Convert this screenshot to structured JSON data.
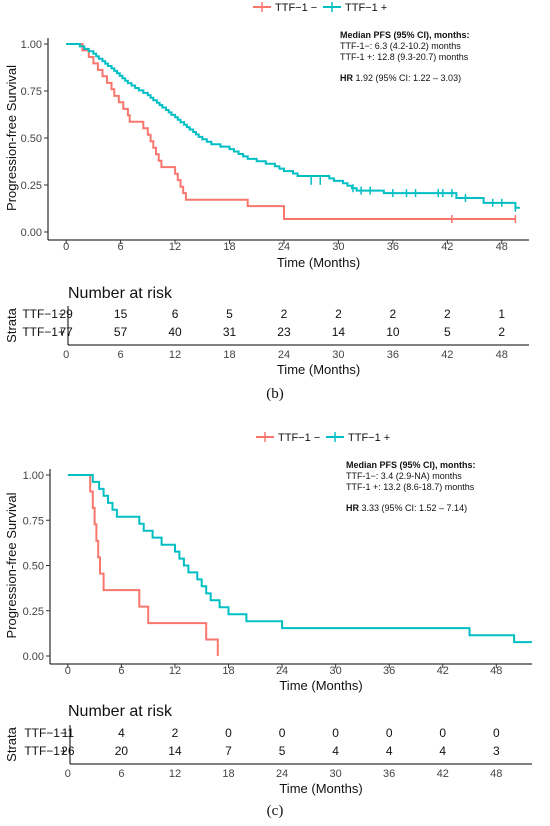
{
  "colors": {
    "neg": "#F8766D",
    "pos": "#00BFC4"
  },
  "chart_data": [
    {
      "type": "line",
      "panel": "(b)",
      "legend": [
        "TTF−1 −",
        "TTF−1 +"
      ],
      "ylabel": "Progression-free Survival",
      "xlabel": "Time (Months)",
      "xticks": [
        "0",
        "6",
        "12",
        "18",
        "24",
        "30",
        "36",
        "42",
        "48"
      ],
      "yticks": [
        "0.00",
        "0.25",
        "0.50",
        "0.75",
        "1.00"
      ],
      "xlim": [
        -2,
        51
      ],
      "ylim": [
        0,
        1
      ],
      "annotation": {
        "title": "Median PFS  (95% CI), months:",
        "line1": "TTF-1−: 6.3 (4.2-10.2) months",
        "line2": "TTF-1 +: 12.8 (9.3-20.7) months",
        "hr_label": "HR",
        "hr_text": " 1.92 (95% CI: 1.22 – 3.03)"
      },
      "series": [
        {
          "name": "TTF−1 −",
          "color": "neg",
          "steps": [
            [
              0,
              1.0
            ],
            [
              1.8,
              0.966
            ],
            [
              2.5,
              0.931
            ],
            [
              3.0,
              0.897
            ],
            [
              3.5,
              0.862
            ],
            [
              4.0,
              0.828
            ],
            [
              4.5,
              0.793
            ],
            [
              5.0,
              0.759
            ],
            [
              5.3,
              0.724
            ],
            [
              5.8,
              0.69
            ],
            [
              6.3,
              0.655
            ],
            [
              6.8,
              0.621
            ],
            [
              7.0,
              0.586
            ],
            [
              8.5,
              0.552
            ],
            [
              9.0,
              0.517
            ],
            [
              9.3,
              0.483
            ],
            [
              9.6,
              0.448
            ],
            [
              9.9,
              0.414
            ],
            [
              10.2,
              0.379
            ],
            [
              10.5,
              0.345
            ],
            [
              12.0,
              0.31
            ],
            [
              12.3,
              0.276
            ],
            [
              12.6,
              0.241
            ],
            [
              12.9,
              0.207
            ],
            [
              13.2,
              0.172
            ],
            [
              20.0,
              0.138
            ],
            [
              24.0,
              0.069
            ],
            [
              49.5,
              0.069
            ]
          ],
          "censor": [
            [
              42.5,
              0.069
            ],
            [
              49.5,
              0.069
            ]
          ]
        },
        {
          "name": "TTF−1 +",
          "color": "pos",
          "steps": [
            [
              0,
              1.0
            ],
            [
              1.5,
              0.987
            ],
            [
              2.0,
              0.974
            ],
            [
              2.5,
              0.961
            ],
            [
              3.0,
              0.948
            ],
            [
              3.3,
              0.935
            ],
            [
              3.6,
              0.922
            ],
            [
              4.0,
              0.909
            ],
            [
              4.3,
              0.896
            ],
            [
              4.6,
              0.883
            ],
            [
              5.0,
              0.87
            ],
            [
              5.3,
              0.857
            ],
            [
              5.6,
              0.844
            ],
            [
              5.9,
              0.831
            ],
            [
              6.2,
              0.818
            ],
            [
              6.5,
              0.805
            ],
            [
              6.8,
              0.792
            ],
            [
              7.2,
              0.779
            ],
            [
              7.6,
              0.766
            ],
            [
              8.0,
              0.753
            ],
            [
              8.5,
              0.74
            ],
            [
              9.0,
              0.727
            ],
            [
              9.3,
              0.714
            ],
            [
              9.6,
              0.701
            ],
            [
              10.0,
              0.688
            ],
            [
              10.3,
              0.675
            ],
            [
              10.6,
              0.662
            ],
            [
              11.0,
              0.649
            ],
            [
              11.3,
              0.636
            ],
            [
              11.6,
              0.623
            ],
            [
              12.0,
              0.61
            ],
            [
              12.3,
              0.597
            ],
            [
              12.6,
              0.584
            ],
            [
              13.0,
              0.571
            ],
            [
              13.3,
              0.558
            ],
            [
              13.6,
              0.545
            ],
            [
              14.0,
              0.532
            ],
            [
              14.3,
              0.519
            ],
            [
              14.6,
              0.506
            ],
            [
              15.0,
              0.493
            ],
            [
              15.5,
              0.48
            ],
            [
              16.0,
              0.467
            ],
            [
              17.0,
              0.454
            ],
            [
              18.0,
              0.441
            ],
            [
              18.5,
              0.428
            ],
            [
              19.0,
              0.415
            ],
            [
              19.5,
              0.402
            ],
            [
              20.0,
              0.389
            ],
            [
              21.0,
              0.376
            ],
            [
              22.0,
              0.363
            ],
            [
              23.0,
              0.35
            ],
            [
              23.5,
              0.337
            ],
            [
              24.0,
              0.324
            ],
            [
              25.0,
              0.311
            ],
            [
              25.5,
              0.298
            ],
            [
              29.0,
              0.285
            ],
            [
              29.5,
              0.272
            ],
            [
              30.5,
              0.259
            ],
            [
              31.0,
              0.246
            ],
            [
              31.5,
              0.233
            ],
            [
              32.0,
              0.22
            ],
            [
              35.0,
              0.207
            ],
            [
              43.0,
              0.181
            ],
            [
              46.0,
              0.155
            ],
            [
              49.5,
              0.129
            ],
            [
              50.0,
              0.129
            ]
          ],
          "censor": [
            [
              27.0,
              0.272
            ],
            [
              28.0,
              0.272
            ],
            [
              31.6,
              0.233
            ],
            [
              32.5,
              0.22
            ],
            [
              33.5,
              0.22
            ],
            [
              36.0,
              0.207
            ],
            [
              37.5,
              0.207
            ],
            [
              38.5,
              0.207
            ],
            [
              41.0,
              0.207
            ],
            [
              41.5,
              0.207
            ],
            [
              42.5,
              0.207
            ],
            [
              44.0,
              0.181
            ],
            [
              47.0,
              0.155
            ],
            [
              48.0,
              0.155
            ],
            [
              49.5,
              0.129
            ]
          ]
        }
      ],
      "risk_table": {
        "title": "Number at risk",
        "ylabel": "Strata",
        "xlabel": "Time (Months)",
        "rows": [
          {
            "label": "TTF−1−",
            "color": "neg",
            "values": [
              "29",
              "15",
              "6",
              "5",
              "2",
              "2",
              "2",
              "2",
              "1"
            ]
          },
          {
            "label": "TTF−1+",
            "color": "pos",
            "values": [
              "77",
              "57",
              "40",
              "31",
              "23",
              "14",
              "10",
              "5",
              "2"
            ]
          }
        ]
      }
    },
    {
      "type": "line",
      "panel": "(c)",
      "legend": [
        "TTF−1 −",
        "TTF−1 +"
      ],
      "ylabel": "Progression-free Survival",
      "xlabel": "Time (Months)",
      "xticks": [
        "0",
        "6",
        "12",
        "18",
        "24",
        "30",
        "36",
        "42",
        "48"
      ],
      "yticks": [
        "0.00",
        "0.25",
        "0.50",
        "0.75",
        "1.00"
      ],
      "xlim": [
        -2,
        52
      ],
      "ylim": [
        0,
        1
      ],
      "annotation": {
        "title": "Median PFS  (95% CI), months:",
        "line1": "TTF-1−: 3.4 (2.9-NA) months",
        "line2": "TTF-1 +: 13.2 (8.6-18.7) months",
        "hr_label": "HR",
        "hr_text": " 3.33 (95% CI: 1.52 – 7.14)"
      },
      "series": [
        {
          "name": "TTF−1 −",
          "color": "neg",
          "steps": [
            [
              0,
              1.0
            ],
            [
              2.5,
              0.909
            ],
            [
              2.8,
              0.818
            ],
            [
              3.0,
              0.727
            ],
            [
              3.2,
              0.636
            ],
            [
              3.4,
              0.545
            ],
            [
              3.6,
              0.455
            ],
            [
              4.0,
              0.364
            ],
            [
              8.0,
              0.273
            ],
            [
              9.0,
              0.182
            ],
            [
              15.5,
              0.091
            ],
            [
              16.8,
              0.0
            ]
          ],
          "censor": []
        },
        {
          "name": "TTF−1 +",
          "color": "pos",
          "steps": [
            [
              0,
              1.0
            ],
            [
              2.8,
              0.962
            ],
            [
              3.5,
              0.923
            ],
            [
              4.0,
              0.885
            ],
            [
              4.5,
              0.846
            ],
            [
              5.0,
              0.808
            ],
            [
              5.5,
              0.769
            ],
            [
              8.0,
              0.731
            ],
            [
              8.5,
              0.692
            ],
            [
              9.5,
              0.654
            ],
            [
              10.5,
              0.615
            ],
            [
              12.0,
              0.577
            ],
            [
              12.5,
              0.538
            ],
            [
              13.0,
              0.5
            ],
            [
              13.5,
              0.462
            ],
            [
              14.5,
              0.423
            ],
            [
              15.0,
              0.385
            ],
            [
              15.5,
              0.346
            ],
            [
              16.0,
              0.308
            ],
            [
              17.0,
              0.269
            ],
            [
              18.0,
              0.231
            ],
            [
              20.0,
              0.192
            ],
            [
              24.0,
              0.154
            ],
            [
              45.0,
              0.115
            ],
            [
              50.0,
              0.077
            ],
            [
              52.0,
              0.077
            ]
          ],
          "censor": []
        }
      ],
      "risk_table": {
        "title": "Number at risk",
        "ylabel": "Strata",
        "xlabel": "Time (Months)",
        "rows": [
          {
            "label": "TTF−1−",
            "color": "neg",
            "values": [
              "11",
              "4",
              "2",
              "0",
              "0",
              "0",
              "0",
              "0",
              "0"
            ]
          },
          {
            "label": "TTF−1+",
            "color": "pos",
            "values": [
              "26",
              "20",
              "14",
              "7",
              "5",
              "4",
              "4",
              "4",
              "3"
            ]
          }
        ]
      }
    }
  ]
}
